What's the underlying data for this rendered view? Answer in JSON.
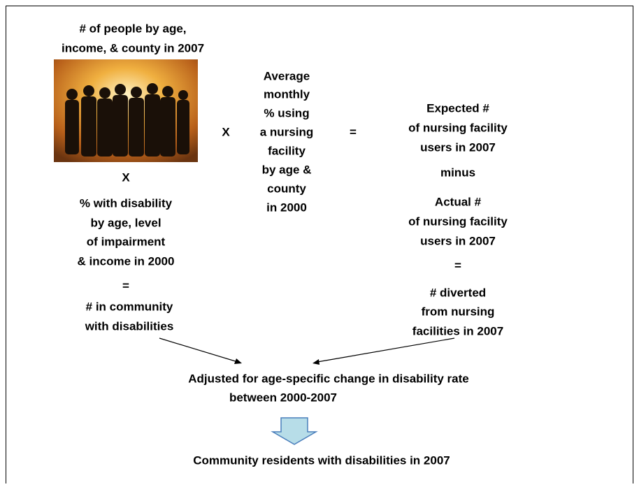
{
  "header": {
    "lines": [
      "# of people by age,",
      "income, & county in 2007"
    ]
  },
  "left": {
    "operator": "X",
    "lines": [
      "% with disability",
      "by age, level",
      "of impairment",
      "& income in 2000"
    ],
    "equals": "=",
    "result": [
      "# in community",
      "with disabilities"
    ]
  },
  "middle_operator": "X",
  "middle": {
    "lines": [
      "Average",
      "monthly",
      "% using",
      "a nursing",
      "facility",
      "by age &",
      "county",
      "in 2000"
    ]
  },
  "right_operator": "=",
  "right": {
    "expected": [
      "Expected #",
      "of nursing facility",
      "users in 2007"
    ],
    "minus": "minus",
    "actual": [
      "Actual #",
      "of nursing facility",
      "users in 2007"
    ],
    "equals": "=",
    "diverted": [
      "# diverted",
      "from nursing",
      "facilities in 2007"
    ]
  },
  "adjusted": {
    "lines": [
      "Adjusted for age-specific change in disability rate",
      "between 2000-2007"
    ]
  },
  "final": "Community residents with disabilities in 2007"
}
